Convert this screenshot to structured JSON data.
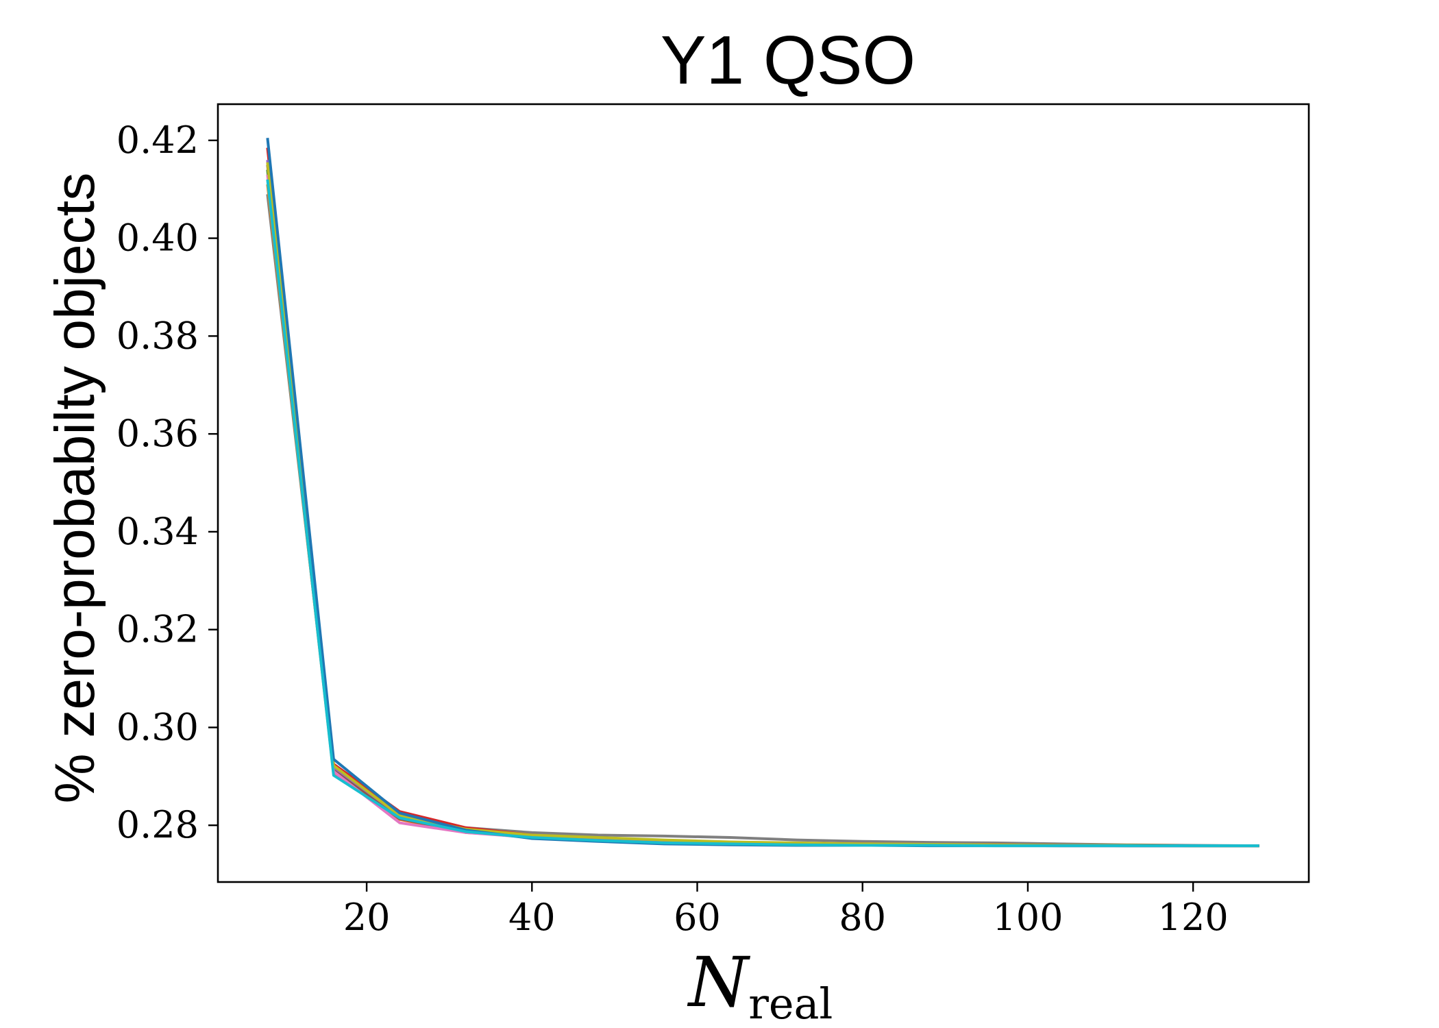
{
  "chart_data": {
    "type": "line",
    "title": "Y1 QSO",
    "ylabel": "% zero-probabilty objects",
    "xlabel_main": "N",
    "xlabel_sub": "real",
    "xlim": [
      2,
      134
    ],
    "ylim": [
      0.2684,
      0.4274
    ],
    "xticks": [
      20,
      40,
      60,
      80,
      100,
      120
    ],
    "yticks": [
      0.28,
      0.3,
      0.32,
      0.34,
      0.36,
      0.38,
      0.4,
      0.42
    ],
    "ytick_labels": [
      "0.28",
      "0.30",
      "0.32",
      "0.34",
      "0.36",
      "0.38",
      "0.40",
      "0.42"
    ],
    "grid": false,
    "legend": "none",
    "x": [
      8,
      16,
      24,
      32,
      40,
      48,
      56,
      64,
      72,
      80,
      88,
      96,
      104,
      112,
      120,
      128
    ],
    "series": [
      {
        "color": "#7f7f7f",
        "values": [
          0.409,
          0.2915,
          0.2815,
          0.2795,
          0.2785,
          0.278,
          0.2778,
          0.2775,
          0.277,
          0.2767,
          0.2765,
          0.2764,
          0.2762,
          0.276,
          0.2759,
          0.2758
        ]
      },
      {
        "color": "#ff7f0e",
        "values": [
          0.411,
          0.2905,
          0.2812,
          0.2785,
          0.2777,
          0.2772,
          0.2768,
          0.2765,
          0.2763,
          0.2762,
          0.2761,
          0.276,
          0.2759,
          0.2759,
          0.2758,
          0.2758
        ]
      },
      {
        "color": "#2ca02c",
        "values": [
          0.414,
          0.292,
          0.2818,
          0.279,
          0.2778,
          0.2772,
          0.2766,
          0.2763,
          0.2762,
          0.2761,
          0.276,
          0.2759,
          0.2759,
          0.2758,
          0.2758,
          0.2758
        ]
      },
      {
        "color": "#d62728",
        "values": [
          0.4185,
          0.2925,
          0.2828,
          0.2795,
          0.278,
          0.2773,
          0.2768,
          0.2765,
          0.2763,
          0.2761,
          0.276,
          0.276,
          0.2759,
          0.2759,
          0.2758,
          0.2758
        ]
      },
      {
        "color": "#9467bd",
        "values": [
          0.416,
          0.2915,
          0.2815,
          0.2788,
          0.2776,
          0.277,
          0.2765,
          0.2763,
          0.2761,
          0.276,
          0.276,
          0.2759,
          0.2759,
          0.2758,
          0.2758,
          0.2758
        ]
      },
      {
        "color": "#8c564b",
        "values": [
          0.415,
          0.2912,
          0.2813,
          0.2787,
          0.2775,
          0.2769,
          0.2764,
          0.2762,
          0.2761,
          0.276,
          0.2759,
          0.2759,
          0.2758,
          0.2758,
          0.2758,
          0.2758
        ]
      },
      {
        "color": "#e377c2",
        "values": [
          0.413,
          0.291,
          0.2805,
          0.2785,
          0.2775,
          0.2769,
          0.2764,
          0.2762,
          0.2761,
          0.276,
          0.2759,
          0.2759,
          0.2758,
          0.2758,
          0.2758,
          0.2758
        ]
      },
      {
        "color": "#bcbd22",
        "values": [
          0.4155,
          0.2922,
          0.282,
          0.2792,
          0.278,
          0.2775,
          0.277,
          0.2766,
          0.2764,
          0.2762,
          0.2761,
          0.276,
          0.2759,
          0.2759,
          0.2758,
          0.2758
        ]
      },
      {
        "color": "#1f77b4",
        "values": [
          0.4205,
          0.2935,
          0.2825,
          0.279,
          0.2773,
          0.2767,
          0.2762,
          0.276,
          0.2759,
          0.2759,
          0.2758,
          0.2758,
          0.2758,
          0.2758,
          0.2758,
          0.2758
        ]
      },
      {
        "color": "#17becf",
        "values": [
          0.412,
          0.2902,
          0.2815,
          0.2787,
          0.2775,
          0.2769,
          0.2764,
          0.2762,
          0.276,
          0.2759,
          0.2759,
          0.2758,
          0.2758,
          0.2758,
          0.2758,
          0.2758
        ]
      }
    ]
  }
}
